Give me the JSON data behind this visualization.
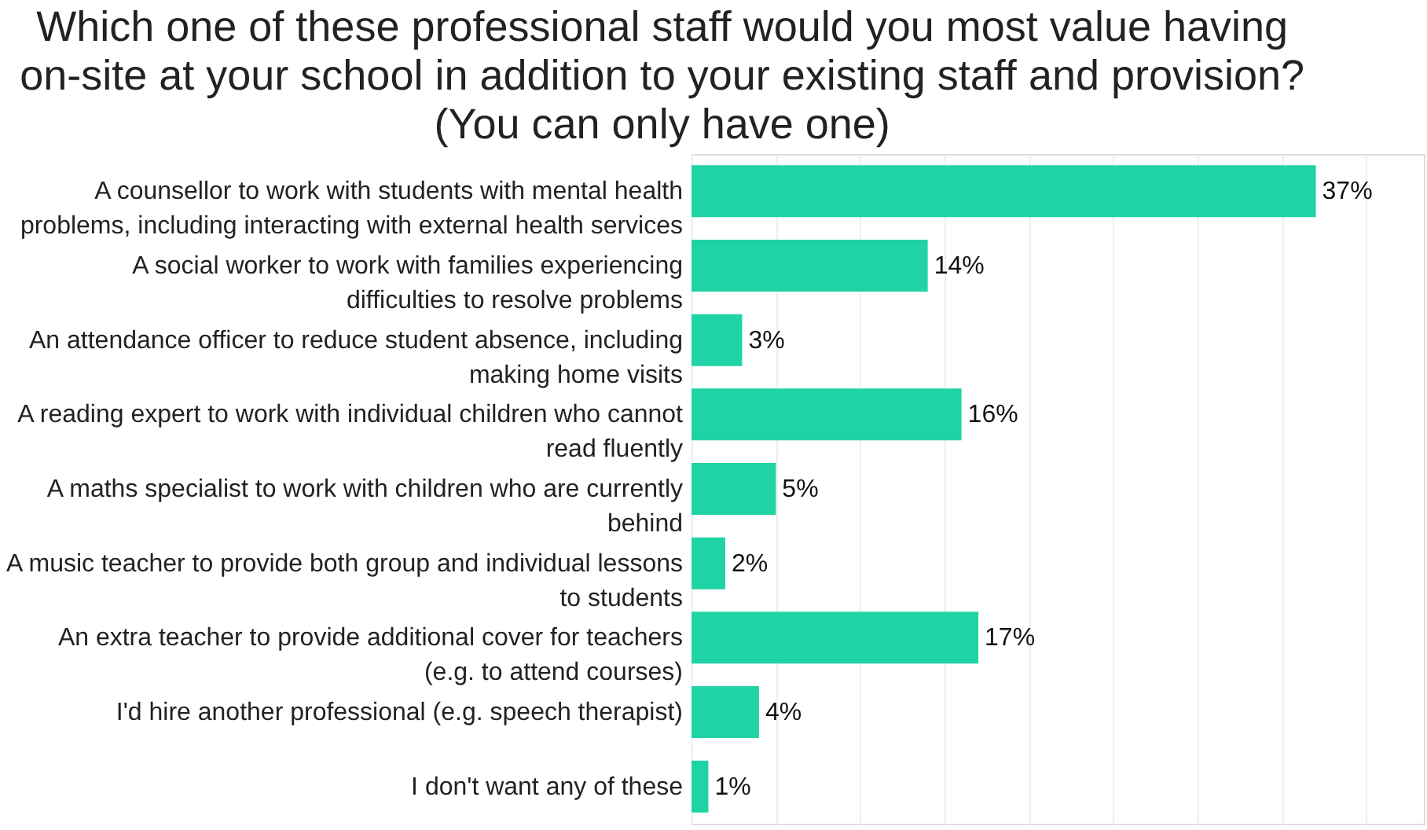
{
  "chart_data": {
    "type": "bar",
    "orientation": "horizontal",
    "title": "Which one of these professional staff would you most value having on-site at your school in addition to your existing staff and provision? (You can only have one)",
    "categories": [
      "A counsellor to work with students with mental health problems, including interacting with external health services",
      "A social worker to work with families experiencing difficulties to resolve problems",
      "An attendance officer to reduce student absence, including making home visits",
      "A reading expert to work with individual children who cannot read fluently",
      "A maths specialist to work with children who are currently behind",
      "A music teacher to provide both group and individual lessons to students",
      "An extra teacher to provide additional cover for teachers (e.g. to attend courses)",
      "I'd hire another professional (e.g. speech therapist)",
      "I don't want any of these"
    ],
    "values": [
      37,
      14,
      3,
      16,
      5,
      2,
      17,
      4,
      1
    ],
    "value_labels": [
      "37%",
      "14%",
      "3%",
      "16%",
      "5%",
      "2%",
      "17%",
      "4%",
      "1%"
    ],
    "color": "#20d3a5",
    "xlim": [
      0,
      43.4
    ],
    "xticks": [
      {
        "value": 0,
        "label": null
      },
      {
        "value": 5,
        "label": null
      },
      {
        "value": 10,
        "label": null
      },
      {
        "value": 15,
        "label": null
      },
      {
        "value": 20,
        "label": null
      },
      {
        "value": 25,
        "label": null
      },
      {
        "value": 30,
        "label": null
      },
      {
        "value": 35,
        "label": null
      },
      {
        "value": 40,
        "label": null
      }
    ],
    "tick_labels": "y",
    "grid": "x"
  }
}
